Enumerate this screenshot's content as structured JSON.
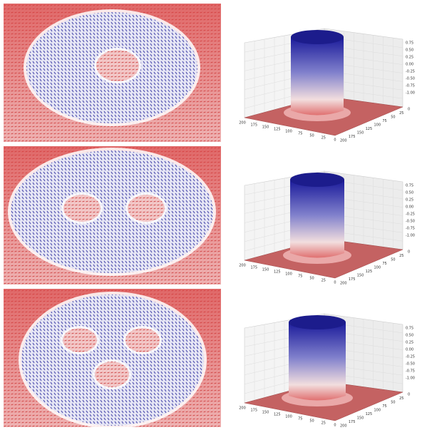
{
  "figures": [
    {
      "axes": {
        "z_ticks": [
          "0.75",
          "0.50",
          "0.25",
          "0.00",
          "-0.25",
          "-0.50",
          "-0.75",
          "-1.00"
        ],
        "x_ticks": [
          "200",
          "175",
          "150",
          "125",
          "100",
          "75",
          "50",
          "25",
          "0"
        ],
        "y_ticks": [
          "0",
          "25",
          "50",
          "75",
          "100",
          "125",
          "150",
          "175",
          "200"
        ]
      }
    },
    {
      "axes": {
        "z_ticks": [
          "0.75",
          "0.50",
          "0.25",
          "0.00",
          "-0.25",
          "-0.50",
          "-0.75",
          "-1.00"
        ],
        "x_ticks": [
          "200",
          "175",
          "150",
          "125",
          "100",
          "75",
          "50",
          "25",
          "0"
        ],
        "y_ticks": [
          "0",
          "25",
          "50",
          "75",
          "100",
          "125",
          "150",
          "175",
          "200"
        ]
      }
    },
    {
      "axes": {
        "z_ticks": [
          "0.75",
          "0.50",
          "0.25",
          "0.00",
          "-0.25",
          "-0.50",
          "-0.75",
          "-1.00"
        ],
        "x_ticks": [
          "200",
          "175",
          "150",
          "125",
          "100",
          "75",
          "50",
          "25",
          "0"
        ],
        "y_ticks": [
          "0",
          "25",
          "50",
          "75",
          "100",
          "125",
          "150",
          "175",
          "200"
        ]
      }
    }
  ]
}
